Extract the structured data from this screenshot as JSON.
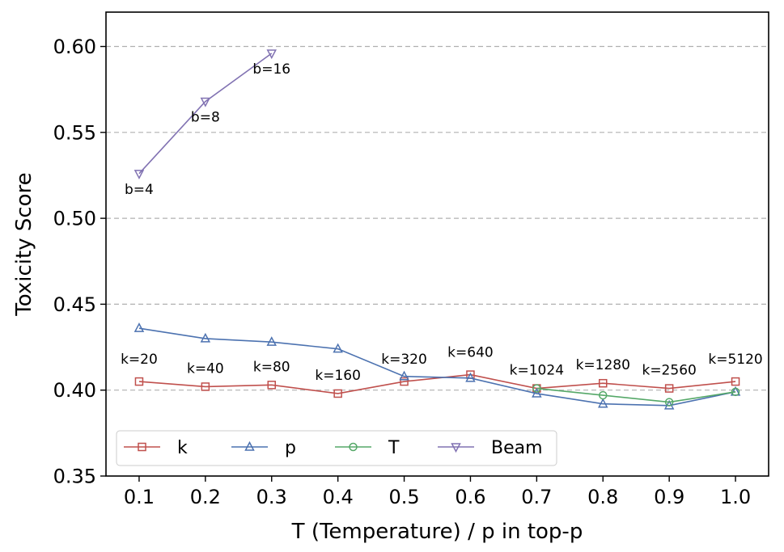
{
  "chart_data": {
    "type": "line",
    "xlabel": "T (Temperature) / p in top-p",
    "ylabel": "Toxicity Score",
    "xlim": [
      0.05,
      1.05
    ],
    "ylim": [
      0.35,
      0.62
    ],
    "xticks": [
      0.1,
      0.2,
      0.3,
      0.4,
      0.5,
      0.6,
      0.7,
      0.8,
      0.9,
      1.0
    ],
    "xtick_labels": [
      "0.1",
      "0.2",
      "0.3",
      "0.4",
      "0.5",
      "0.6",
      "0.7",
      "0.8",
      "0.9",
      "1.0"
    ],
    "yticks": [
      0.35,
      0.4,
      0.45,
      0.5,
      0.55,
      0.6
    ],
    "ytick_labels": [
      "0.35",
      "0.40",
      "0.45",
      "0.50",
      "0.55",
      "0.60"
    ],
    "grid": "horizontal dashed",
    "legend_position": "bottom-left",
    "series": [
      {
        "name": "k",
        "color": "#c0504d",
        "marker": "square",
        "x": [
          0.1,
          0.2,
          0.3,
          0.4,
          0.5,
          0.6,
          0.7,
          0.8,
          0.9,
          1.0
        ],
        "values": [
          0.405,
          0.402,
          0.403,
          0.398,
          0.405,
          0.409,
          0.401,
          0.404,
          0.401,
          0.405
        ],
        "point_labels": [
          "k=20",
          "k=40",
          "k=80",
          "k=160",
          "k=320",
          "k=640",
          "k=1024",
          "k=1280",
          "k=2560",
          "k=5120"
        ]
      },
      {
        "name": "p",
        "color": "#4c72b0",
        "marker": "triangle-up",
        "x": [
          0.1,
          0.2,
          0.3,
          0.4,
          0.5,
          0.6,
          0.7,
          0.8,
          0.9,
          1.0
        ],
        "values": [
          0.436,
          0.43,
          0.428,
          0.424,
          0.408,
          0.407,
          0.398,
          0.392,
          0.391,
          0.399
        ]
      },
      {
        "name": "T",
        "color": "#55a868",
        "marker": "circle",
        "x": [
          0.7,
          0.8,
          0.9,
          1.0
        ],
        "values": [
          0.401,
          0.397,
          0.393,
          0.399
        ]
      },
      {
        "name": "Beam",
        "color": "#8172b2",
        "marker": "triangle-down",
        "x": [
          0.1,
          0.2,
          0.3
        ],
        "values": [
          0.526,
          0.568,
          0.596
        ],
        "point_labels": [
          "b=4",
          "b=8",
          "b=16"
        ]
      }
    ]
  }
}
